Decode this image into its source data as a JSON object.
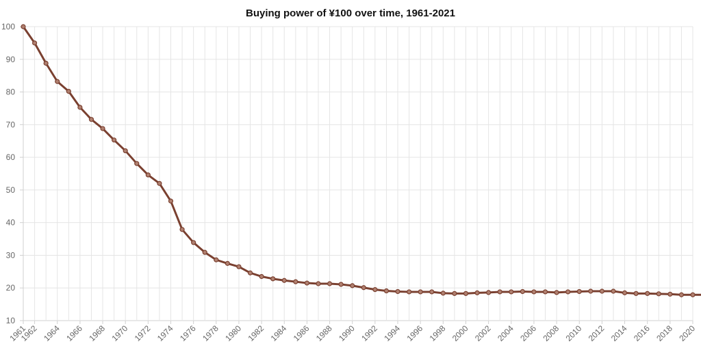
{
  "chart_data": {
    "type": "line",
    "title": "Buying power of ¥100 over time, 1961-2021",
    "xlabel": "",
    "ylabel": "",
    "ylim": [
      10,
      100
    ],
    "yticks": [
      10,
      20,
      30,
      40,
      50,
      60,
      70,
      80,
      90,
      100
    ],
    "x_tick_labels": [
      "1961",
      "1962",
      "1964",
      "1966",
      "1968",
      "1970",
      "1972",
      "1974",
      "1976",
      "1978",
      "1980",
      "1982",
      "1984",
      "1986",
      "1988",
      "1990",
      "1992",
      "1994",
      "1996",
      "1998",
      "2000",
      "2002",
      "2004",
      "2006",
      "2008",
      "2010",
      "2012",
      "2014",
      "2016",
      "2018",
      "2020"
    ],
    "grid": true,
    "line_color": "#7a4030",
    "marker_fill": "#b08070",
    "x": [
      1961,
      1962,
      1963,
      1964,
      1965,
      1966,
      1967,
      1968,
      1969,
      1970,
      1971,
      1972,
      1973,
      1974,
      1975,
      1976,
      1977,
      1978,
      1979,
      1980,
      1981,
      1982,
      1983,
      1984,
      1985,
      1986,
      1987,
      1988,
      1989,
      1990,
      1991,
      1992,
      1993,
      1994,
      1995,
      1996,
      1997,
      1998,
      1999,
      2000,
      2001,
      2002,
      2003,
      2004,
      2005,
      2006,
      2007,
      2008,
      2009,
      2010,
      2011,
      2012,
      2013,
      2014,
      2015,
      2016,
      2017,
      2018,
      2019,
      2020,
      2021
    ],
    "values": [
      100,
      95,
      88.8,
      83.2,
      80.2,
      75.3,
      71.6,
      68.8,
      65.3,
      62,
      58.1,
      54.6,
      52,
      46.6,
      37.9,
      33.9,
      30.9,
      28.6,
      27.5,
      26.5,
      24.6,
      23.5,
      22.8,
      22.3,
      21.9,
      21.5,
      21.3,
      21.3,
      21.1,
      20.7,
      20.1,
      19.5,
      19.1,
      18.9,
      18.8,
      18.8,
      18.8,
      18.4,
      18.3,
      18.3,
      18.5,
      18.6,
      18.8,
      18.8,
      18.9,
      18.8,
      18.8,
      18.6,
      18.8,
      18.9,
      19,
      19,
      19,
      18.5,
      18.3,
      18.3,
      18.2,
      18.1,
      17.9,
      17.9,
      17.9
    ]
  }
}
